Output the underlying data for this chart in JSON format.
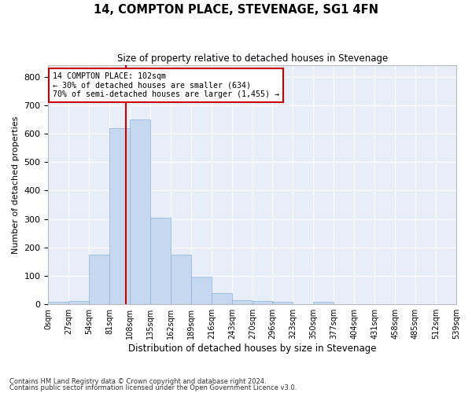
{
  "title": "14, COMPTON PLACE, STEVENAGE, SG1 4FN",
  "subtitle": "Size of property relative to detached houses in Stevenage",
  "xlabel": "Distribution of detached houses by size in Stevenage",
  "ylabel": "Number of detached properties",
  "bar_color": "#c5d8ef",
  "bar_edge_color": "#8ab4d8",
  "background_color": "#e8eef8",
  "grid_color": "#ffffff",
  "bin_edges": [
    0,
    27,
    54,
    81,
    108,
    135,
    162,
    189,
    216,
    243,
    270,
    296,
    323,
    350,
    377,
    404,
    431,
    458,
    485,
    512,
    539
  ],
  "bar_heights": [
    8,
    13,
    175,
    620,
    650,
    305,
    175,
    98,
    38,
    15,
    12,
    10,
    0,
    8,
    0,
    0,
    0,
    0,
    0,
    0
  ],
  "property_size": 102,
  "vline_color": "#cc0000",
  "annotation_line1": "14 COMPTON PLACE: 102sqm",
  "annotation_line2": "← 30% of detached houses are smaller (634)",
  "annotation_line3": "70% of semi-detached houses are larger (1,455) →",
  "annotation_box_color": "#cc0000",
  "ylim": [
    0,
    840
  ],
  "yticks": [
    0,
    100,
    200,
    300,
    400,
    500,
    600,
    700,
    800
  ],
  "footnote1": "Contains HM Land Registry data © Crown copyright and database right 2024.",
  "footnote2": "Contains public sector information licensed under the Open Government Licence v3.0."
}
